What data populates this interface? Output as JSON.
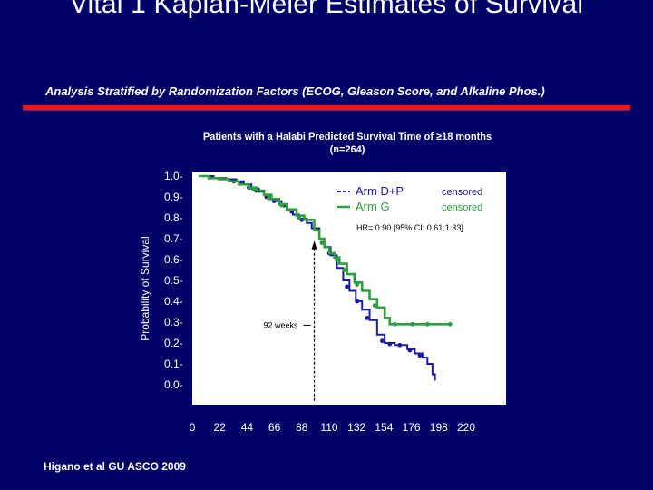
{
  "slide": {
    "title": "Vital 1 Kaplan-Meier Estimates of Survival",
    "subtitle": "Analysis Stratified by Randomization Factors (ECOG, Gleason Score, and Alkaline Phos.)",
    "footnote": "Higano et al GU ASCO 2009"
  },
  "chart_data": {
    "type": "line",
    "title": "Patients with a Halabi Predicted Survival Time of ≥18 months",
    "subtitle": "(n=264)",
    "ylabel": "Probability of Survival",
    "xlabel": "",
    "xlim": [
      0,
      220
    ],
    "ylim": [
      0,
      1.0
    ],
    "x_ticks": [
      "0",
      "22",
      "44",
      "66",
      "88",
      "110",
      "132",
      "154",
      "176",
      "198",
      "220"
    ],
    "y_ticks": [
      "1.0-",
      "0.9-",
      "0.8-",
      "0.7-",
      "0.6-",
      "0.5-",
      "0.4-",
      "0.3-",
      "0.2-",
      "0.1-",
      "0.0-"
    ],
    "legend": {
      "placement": "top-right",
      "censored_label": "censored"
    },
    "annotations": {
      "hr": "HR= 0.90 [95% CI: 0.61,1.33]",
      "median": "92 weeks"
    },
    "median_x": 92,
    "series": [
      {
        "name": "Arm D+P",
        "color": "#1a1aa6",
        "points": [
          [
            0,
            1.0
          ],
          [
            12,
            0.99
          ],
          [
            22,
            0.985
          ],
          [
            30,
            0.975
          ],
          [
            36,
            0.96
          ],
          [
            42,
            0.94
          ],
          [
            48,
            0.925
          ],
          [
            52,
            0.91
          ],
          [
            57,
            0.89
          ],
          [
            62,
            0.88
          ],
          [
            66,
            0.865
          ],
          [
            70,
            0.84
          ],
          [
            75,
            0.815
          ],
          [
            80,
            0.795
          ],
          [
            86,
            0.775
          ],
          [
            90,
            0.75
          ],
          [
            96,
            0.7
          ],
          [
            100,
            0.66
          ],
          [
            105,
            0.62
          ],
          [
            110,
            0.56
          ],
          [
            115,
            0.5
          ],
          [
            120,
            0.45
          ],
          [
            125,
            0.4
          ],
          [
            130,
            0.36
          ],
          [
            136,
            0.31
          ],
          [
            142,
            0.24
          ],
          [
            148,
            0.2
          ],
          [
            156,
            0.19
          ],
          [
            166,
            0.17
          ],
          [
            172,
            0.15
          ],
          [
            178,
            0.13
          ],
          [
            182,
            0.1
          ],
          [
            186,
            0.05
          ],
          [
            188,
            0.02
          ]
        ],
        "censored": [
          [
            28,
            0.975
          ],
          [
            34,
            0.965
          ],
          [
            40,
            0.945
          ],
          [
            46,
            0.93
          ],
          [
            54,
            0.9
          ],
          [
            60,
            0.88
          ],
          [
            68,
            0.86
          ],
          [
            74,
            0.83
          ],
          [
            82,
            0.79
          ],
          [
            104,
            0.63
          ],
          [
            118,
            0.47
          ],
          [
            126,
            0.4
          ],
          [
            134,
            0.32
          ],
          [
            146,
            0.21
          ],
          [
            152,
            0.195
          ],
          [
            160,
            0.19
          ],
          [
            168,
            0.165
          ],
          [
            176,
            0.14
          ]
        ]
      },
      {
        "name": "Arm G",
        "color": "#2e9e3e",
        "points": [
          [
            0,
            1.0
          ],
          [
            8,
            0.99
          ],
          [
            16,
            0.985
          ],
          [
            24,
            0.975
          ],
          [
            32,
            0.96
          ],
          [
            40,
            0.945
          ],
          [
            46,
            0.93
          ],
          [
            52,
            0.91
          ],
          [
            58,
            0.89
          ],
          [
            64,
            0.865
          ],
          [
            70,
            0.84
          ],
          [
            78,
            0.81
          ],
          [
            84,
            0.79
          ],
          [
            92,
            0.74
          ],
          [
            96,
            0.7
          ],
          [
            100,
            0.66
          ],
          [
            104,
            0.63
          ],
          [
            108,
            0.61
          ],
          [
            112,
            0.58
          ],
          [
            118,
            0.53
          ],
          [
            124,
            0.49
          ],
          [
            130,
            0.45
          ],
          [
            136,
            0.41
          ],
          [
            142,
            0.37
          ],
          [
            148,
            0.32
          ],
          [
            152,
            0.29
          ],
          [
            160,
            0.29
          ],
          [
            190,
            0.29
          ],
          [
            200,
            0.29
          ]
        ],
        "censored": [
          [
            44,
            0.935
          ],
          [
            56,
            0.895
          ],
          [
            66,
            0.86
          ],
          [
            80,
            0.8
          ],
          [
            98,
            0.68
          ],
          [
            110,
            0.6
          ],
          [
            116,
            0.55
          ],
          [
            126,
            0.48
          ],
          [
            140,
            0.38
          ],
          [
            156,
            0.29
          ],
          [
            170,
            0.29
          ],
          [
            182,
            0.29
          ],
          [
            200,
            0.29
          ]
        ]
      }
    ]
  }
}
